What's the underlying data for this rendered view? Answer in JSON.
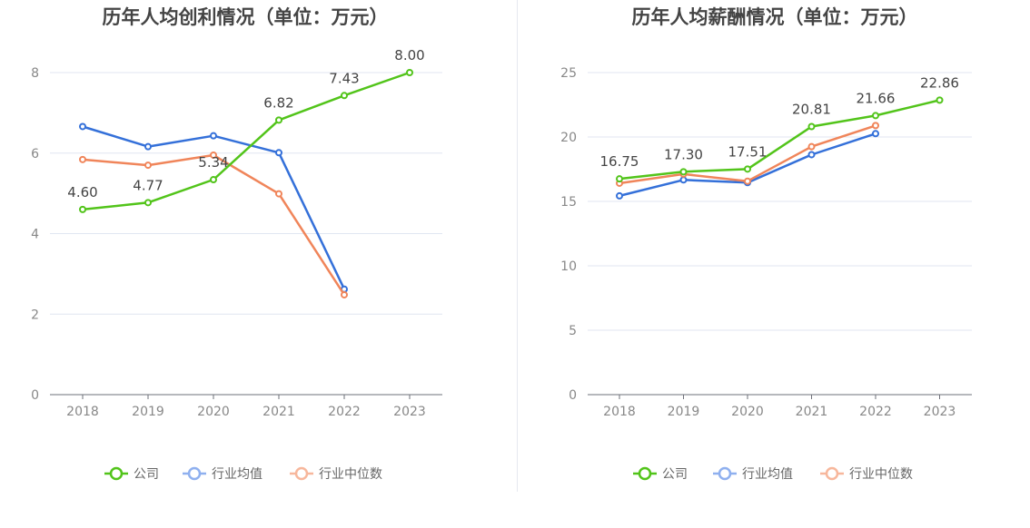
{
  "chart_data": [
    {
      "type": "line",
      "title": "历年人均创利情况（单位：万元）",
      "categories": [
        "2018",
        "2019",
        "2020",
        "2021",
        "2022",
        "2023"
      ],
      "ylim": [
        0,
        8
      ],
      "yticks": [
        0,
        2,
        4,
        6,
        8
      ],
      "grid": true,
      "legend_position": "bottom-center",
      "series": [
        {
          "name": "公司",
          "color": "#52c41a",
          "values": [
            4.6,
            4.77,
            5.34,
            6.82,
            7.43,
            8.0
          ],
          "labels": [
            "4.60",
            "4.77",
            "5.34",
            "6.82",
            "7.43",
            "8.00"
          ]
        },
        {
          "name": "行业均值",
          "color": "#3470d9",
          "values": [
            6.66,
            6.16,
            6.43,
            6.01,
            2.62,
            null
          ]
        },
        {
          "name": "行业中位数",
          "color": "#f0855a",
          "values": [
            5.84,
            5.7,
            5.95,
            4.99,
            2.48,
            null
          ]
        }
      ]
    },
    {
      "type": "line",
      "title": "历年人均薪酬情况（单位：万元）",
      "categories": [
        "2018",
        "2019",
        "2020",
        "2021",
        "2022",
        "2023"
      ],
      "ylim": [
        0,
        25
      ],
      "yticks": [
        0,
        5,
        10,
        15,
        20,
        25
      ],
      "grid": true,
      "legend_position": "bottom-center",
      "series": [
        {
          "name": "公司",
          "color": "#52c41a",
          "values": [
            16.75,
            17.3,
            17.51,
            20.81,
            21.66,
            22.86
          ],
          "labels": [
            "16.75",
            "17.30",
            "17.51",
            "20.81",
            "21.66",
            "22.86"
          ]
        },
        {
          "name": "行业均值",
          "color": "#3470d9",
          "values": [
            15.43,
            16.67,
            16.46,
            18.63,
            20.26,
            null
          ]
        },
        {
          "name": "行业中位数",
          "color": "#f0855a",
          "values": [
            16.41,
            17.12,
            16.57,
            19.25,
            20.89,
            null
          ]
        }
      ]
    }
  ],
  "legend_colors": {
    "公司": "#52c41a",
    "行业均值": "#8fb0ef",
    "行业中位数": "#f7b79c"
  }
}
